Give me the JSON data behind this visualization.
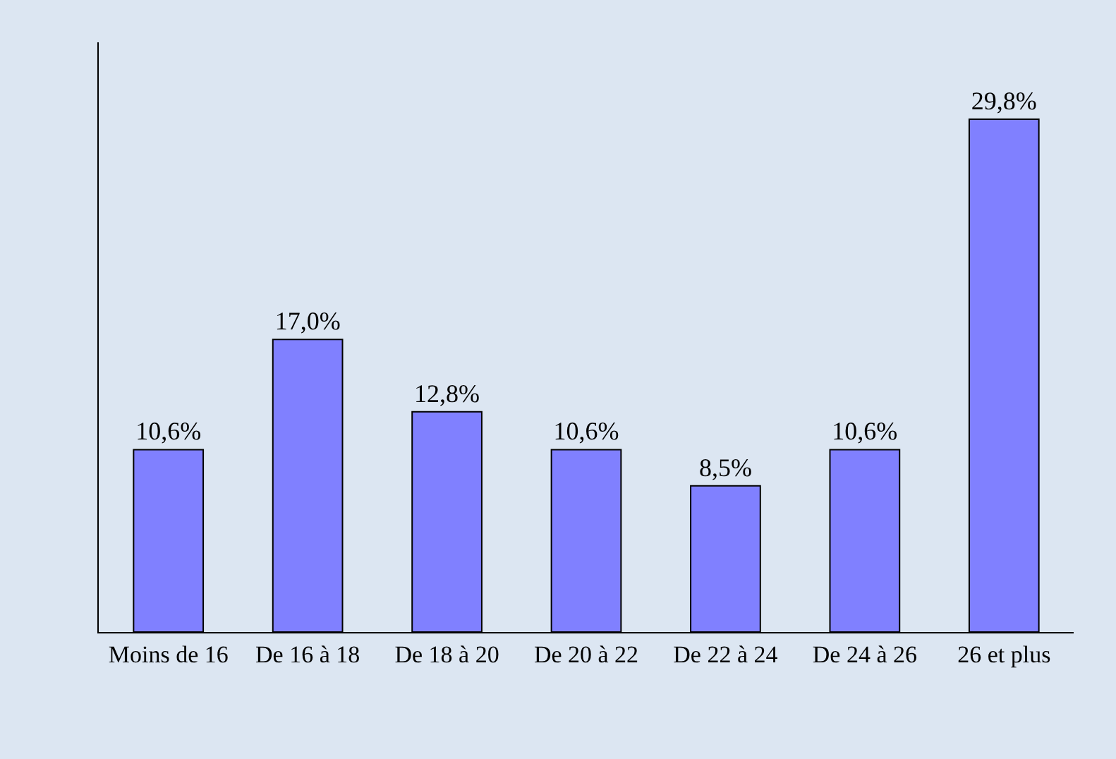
{
  "chart_data": {
    "type": "bar",
    "categories": [
      "Moins de 16",
      "De 16 à 18",
      "De 18 à 20",
      "De 20 à 22",
      "De 22 à 24",
      "De 24 à 26",
      "26 et plus"
    ],
    "values": [
      10.6,
      17.0,
      12.8,
      10.6,
      8.5,
      10.6,
      29.8
    ],
    "color": "#8080ff",
    "value_labels": [
      "10,6%",
      "17,0%",
      "12,8%",
      "10,6%",
      "8,5%",
      "10,6%",
      "29,8%"
    ],
    "grid": false,
    "legend": false
  }
}
